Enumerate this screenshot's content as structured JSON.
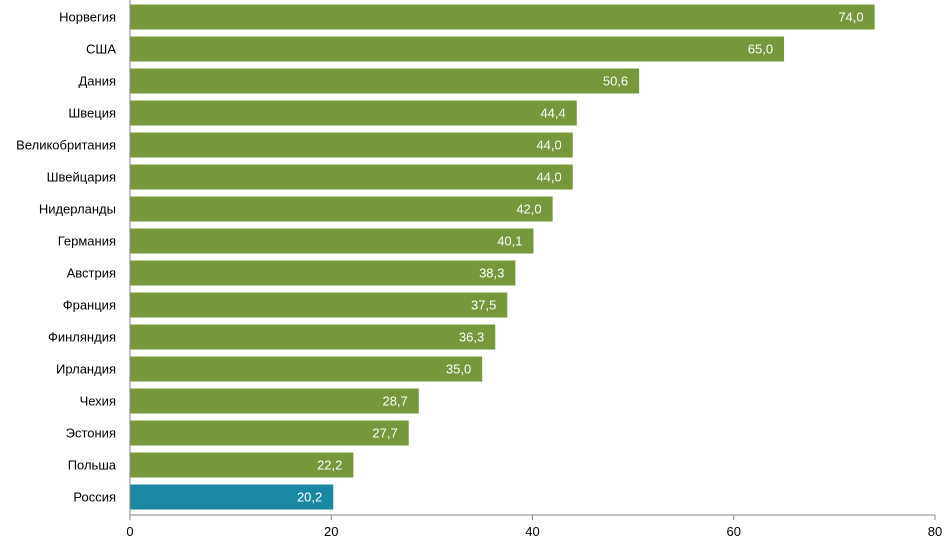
{
  "chart_data": {
    "type": "bar",
    "orientation": "horizontal",
    "categories": [
      "Норвегия",
      "США",
      "Дания",
      "Швеция",
      "Великобритания",
      "Швейцария",
      "Нидерланды",
      "Германия",
      "Австрия",
      "Франция",
      "Финляндия",
      "Ирландия",
      "Чехия",
      "Эстония",
      "Польша",
      "Россия"
    ],
    "values": [
      74.0,
      65.0,
      50.6,
      44.4,
      44.0,
      44.0,
      42.0,
      40.1,
      38.3,
      37.5,
      36.3,
      35.0,
      28.7,
      27.7,
      22.2,
      20.2
    ],
    "value_labels": [
      "74,0",
      "65,0",
      "50,6",
      "44,4",
      "44,0",
      "44,0",
      "42,0",
      "40,1",
      "38,3",
      "37,5",
      "36,3",
      "35,0",
      "28,7",
      "27,7",
      "22,2",
      "20,2"
    ],
    "x_ticks": [
      "0",
      "20",
      "40",
      "60",
      "80"
    ],
    "xlim": [
      0,
      80
    ],
    "grid": false,
    "legend": "none",
    "bar_color": "#77983a",
    "highlight_color": "#1a87a4",
    "highlight_category": "Россия"
  }
}
